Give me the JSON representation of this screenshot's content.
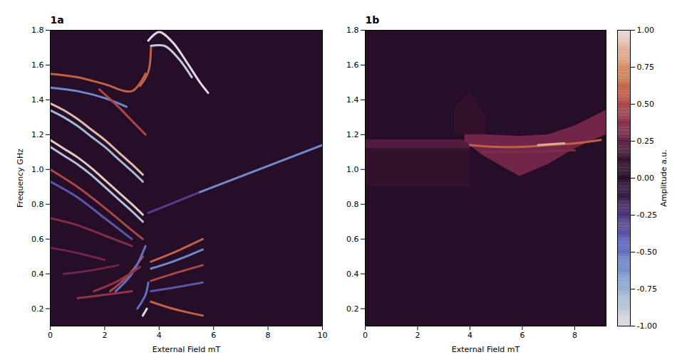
{
  "chart_data": [
    {
      "type": "heatmap",
      "title": "1a",
      "xlabel": "External Field mT",
      "ylabel": "Frequency GHz",
      "xlim": [
        0,
        10
      ],
      "xticks": [
        0,
        2,
        4,
        6,
        8,
        10
      ],
      "ylim": [
        0.1,
        1.8
      ],
      "yticks": [
        0.2,
        0.4,
        0.6,
        0.8,
        {
          "value": 1,
          "label": "1.0"
        },
        1.2,
        1.4,
        1.6,
        1.8
      ],
      "background": 0,
      "regions": [],
      "curves": [
        {
          "amplitude": 0.95,
          "points": [
            [
              0,
              1.17
            ],
            [
              0.5,
              1.12
            ],
            [
              1,
              1.07
            ],
            [
              1.5,
              1.01
            ],
            [
              2,
              0.94
            ],
            [
              2.5,
              0.87
            ],
            [
              3,
              0.8
            ],
            [
              3.4,
              0.74
            ]
          ]
        },
        {
          "amplitude": -0.85,
          "points": [
            [
              0,
              1.13
            ],
            [
              0.5,
              1.08
            ],
            [
              1,
              1.03
            ],
            [
              1.5,
              0.97
            ],
            [
              2,
              0.9
            ],
            [
              2.5,
              0.83
            ],
            [
              3,
              0.76
            ],
            [
              3.4,
              0.7
            ]
          ]
        },
        {
          "amplitude": 0.9,
          "points": [
            [
              0,
              1.38
            ],
            [
              0.5,
              1.34
            ],
            [
              1,
              1.29
            ],
            [
              1.5,
              1.23
            ],
            [
              2,
              1.17
            ],
            [
              2.5,
              1.1
            ],
            [
              3,
              1.03
            ],
            [
              3.4,
              0.97
            ]
          ]
        },
        {
          "amplitude": -0.8,
          "points": [
            [
              0,
              1.34
            ],
            [
              0.5,
              1.3
            ],
            [
              1,
              1.25
            ],
            [
              1.5,
              1.19
            ],
            [
              2,
              1.13
            ],
            [
              2.5,
              1.06
            ],
            [
              3,
              0.99
            ],
            [
              3.4,
              0.93
            ]
          ]
        },
        {
          "amplitude": 0.6,
          "points": [
            [
              0,
              1.55
            ],
            [
              1,
              1.53
            ],
            [
              2,
              1.49
            ],
            [
              3,
              1.45
            ],
            [
              3.5,
              1.55
            ]
          ]
        },
        {
          "amplitude": -0.6,
          "points": [
            [
              0,
              1.47
            ],
            [
              1,
              1.45
            ],
            [
              2,
              1.41
            ],
            [
              2.8,
              1.36
            ]
          ]
        },
        {
          "amplitude": 0.5,
          "points": [
            [
              1.8,
              1.46
            ],
            [
              2.5,
              1.36
            ],
            [
              3,
              1.28
            ],
            [
              3.5,
              1.2
            ]
          ]
        },
        {
          "amplitude": 0.5,
          "points": [
            [
              0,
              1.0
            ],
            [
              1,
              0.9
            ],
            [
              2,
              0.78
            ],
            [
              3,
              0.65
            ],
            [
              3.4,
              0.6
            ]
          ]
        },
        {
          "amplitude": -0.4,
          "points": [
            [
              0,
              0.93
            ],
            [
              1,
              0.84
            ],
            [
              2,
              0.72
            ],
            [
              3,
              0.6
            ]
          ]
        },
        {
          "amplitude": 0.35,
          "points": [
            [
              0,
              0.72
            ],
            [
              1,
              0.68
            ],
            [
              2,
              0.62
            ],
            [
              3,
              0.56
            ]
          ]
        },
        {
          "amplitude": 0.3,
          "points": [
            [
              0,
              0.55
            ],
            [
              1,
              0.52
            ],
            [
              2,
              0.48
            ]
          ]
        },
        {
          "amplitude": 0.3,
          "points": [
            [
              0.5,
              0.4
            ],
            [
              1.5,
              0.42
            ],
            [
              2.5,
              0.45
            ]
          ]
        },
        {
          "amplitude": 0.5,
          "points": [
            [
              2.2,
              0.3
            ],
            [
              2.8,
              0.38
            ],
            [
              3.4,
              0.5
            ]
          ]
        },
        {
          "amplitude": -0.5,
          "points": [
            [
              2.4,
              0.3
            ],
            [
              3,
              0.4
            ],
            [
              3.5,
              0.56
            ]
          ]
        },
        {
          "amplitude": 0.4,
          "points": [
            [
              1.6,
              0.3
            ],
            [
              2.5,
              0.36
            ],
            [
              3.3,
              0.44
            ]
          ]
        },
        {
          "amplitude": 0.4,
          "points": [
            [
              1,
              0.26
            ],
            [
              2,
              0.28
            ],
            [
              3,
              0.3
            ]
          ]
        },
        {
          "amplitude": 0.6,
          "points": [
            [
              3.7,
              0.47
            ],
            [
              4.5,
              0.52
            ],
            [
              5.6,
              0.6
            ]
          ]
        },
        {
          "amplitude": -0.6,
          "points": [
            [
              3.7,
              0.43
            ],
            [
              4.5,
              0.47
            ],
            [
              5.6,
              0.54
            ]
          ]
        },
        {
          "amplitude": 0.5,
          "points": [
            [
              3.7,
              0.36
            ],
            [
              4.5,
              0.4
            ],
            [
              5.6,
              0.45
            ]
          ]
        },
        {
          "amplitude": -0.4,
          "points": [
            [
              3.7,
              0.3
            ],
            [
              4.5,
              0.32
            ],
            [
              5.6,
              0.35
            ]
          ]
        },
        {
          "amplitude": 0.6,
          "points": [
            [
              3.7,
              0.24
            ],
            [
              4.5,
              0.2
            ],
            [
              5.6,
              0.16
            ]
          ]
        },
        {
          "amplitude": -0.5,
          "points": [
            [
              3.2,
              0.2
            ],
            [
              3.5,
              0.28
            ],
            [
              3.6,
              0.35
            ]
          ]
        },
        {
          "amplitude": 1,
          "points": [
            [
              3.4,
              0.16
            ],
            [
              3.55,
              0.2
            ]
          ]
        },
        {
          "amplitude": 1,
          "points": [
            [
              3.6,
              1.74
            ],
            [
              4,
              1.79
            ],
            [
              4.5,
              1.73
            ],
            [
              5,
              1.62
            ],
            [
              5.5,
              1.5
            ],
            [
              5.8,
              1.44
            ]
          ]
        },
        {
          "amplitude": -0.9,
          "points": [
            [
              3.7,
              1.71
            ],
            [
              4.2,
              1.71
            ],
            [
              4.7,
              1.64
            ],
            [
              5.2,
              1.53
            ]
          ]
        },
        {
          "amplitude": 0.6,
          "points": [
            [
              3.3,
              1.48
            ],
            [
              3.6,
              1.56
            ],
            [
              3.7,
              1.7
            ]
          ]
        },
        {
          "amplitude": -0.3,
          "points": [
            [
              3.6,
              0.75
            ],
            [
              5.5,
              0.87
            ]
          ]
        },
        {
          "amplitude": -0.6,
          "points": [
            [
              5.5,
              0.87
            ],
            [
              10,
              1.14
            ]
          ]
        }
      ]
    },
    {
      "type": "heatmap",
      "title": "1b",
      "xlabel": "External Field mT",
      "xlim": [
        0,
        9.2
      ],
      "xticks": [
        0,
        2,
        4,
        6,
        8
      ],
      "ylim": [
        0.1,
        1.8
      ],
      "yticks": [
        0.2,
        0.4,
        0.6,
        0.8,
        {
          "value": 1,
          "label": "1.0"
        },
        1.2,
        1.4,
        1.6,
        1.8
      ],
      "background": 0,
      "regions": [
        {
          "amplitude": 0.12,
          "x": [
            0,
            4
          ],
          "low": [
            0.9,
            0.9
          ],
          "high": [
            1.12,
            1.12
          ]
        },
        {
          "amplitude": 0.22,
          "x": [
            0,
            4
          ],
          "low": [
            1.12,
            1.12
          ],
          "high": [
            1.17,
            1.17
          ]
        },
        {
          "amplitude": 0.12,
          "x": [
            3.4,
            4,
            4.6
          ],
          "low": [
            1.2,
            1.2,
            1.2
          ],
          "high": [
            1.35,
            1.45,
            1.3
          ]
        },
        {
          "amplitude": 0.3,
          "x": [
            3.8,
            4.5,
            5.9,
            7,
            8,
            9.2
          ],
          "low": [
            1.16,
            1.08,
            0.96,
            1.03,
            1.12,
            1.2
          ],
          "high": [
            1.2,
            1.2,
            1.19,
            1.2,
            1.25,
            1.34
          ]
        }
      ],
      "curves": [
        {
          "amplitude": 0.35,
          "points": [
            [
              4.5,
              1.1
            ],
            [
              6,
              1.1
            ],
            [
              8,
              1.11
            ]
          ]
        },
        {
          "amplitude": 0.6,
          "points": [
            [
              4,
              1.14
            ],
            [
              5,
              1.13
            ],
            [
              6,
              1.13
            ],
            [
              7,
              1.14
            ],
            [
              8,
              1.15
            ],
            [
              9,
              1.17
            ]
          ]
        },
        {
          "amplitude": 0.85,
          "points": [
            [
              6.6,
              1.14
            ],
            [
              7.6,
              1.15
            ]
          ]
        }
      ],
      "colorbar": {
        "label": "Amplitude a.u.",
        "lim": [
          -1,
          1
        ],
        "ticks": [
          {
            "value": -1,
            "label": "-1.00"
          },
          {
            "value": -0.75,
            "label": "-0.75"
          },
          {
            "value": -0.5,
            "label": "-0.50"
          },
          {
            "value": -0.25,
            "label": "-0.25"
          },
          {
            "value": 0,
            "label": "0.00"
          },
          {
            "value": 0.25,
            "label": "0.25"
          },
          {
            "value": 0.5,
            "label": "0.50"
          },
          {
            "value": 0.75,
            "label": "0.75"
          },
          {
            "value": 1,
            "label": "1.00"
          }
        ]
      }
    }
  ]
}
